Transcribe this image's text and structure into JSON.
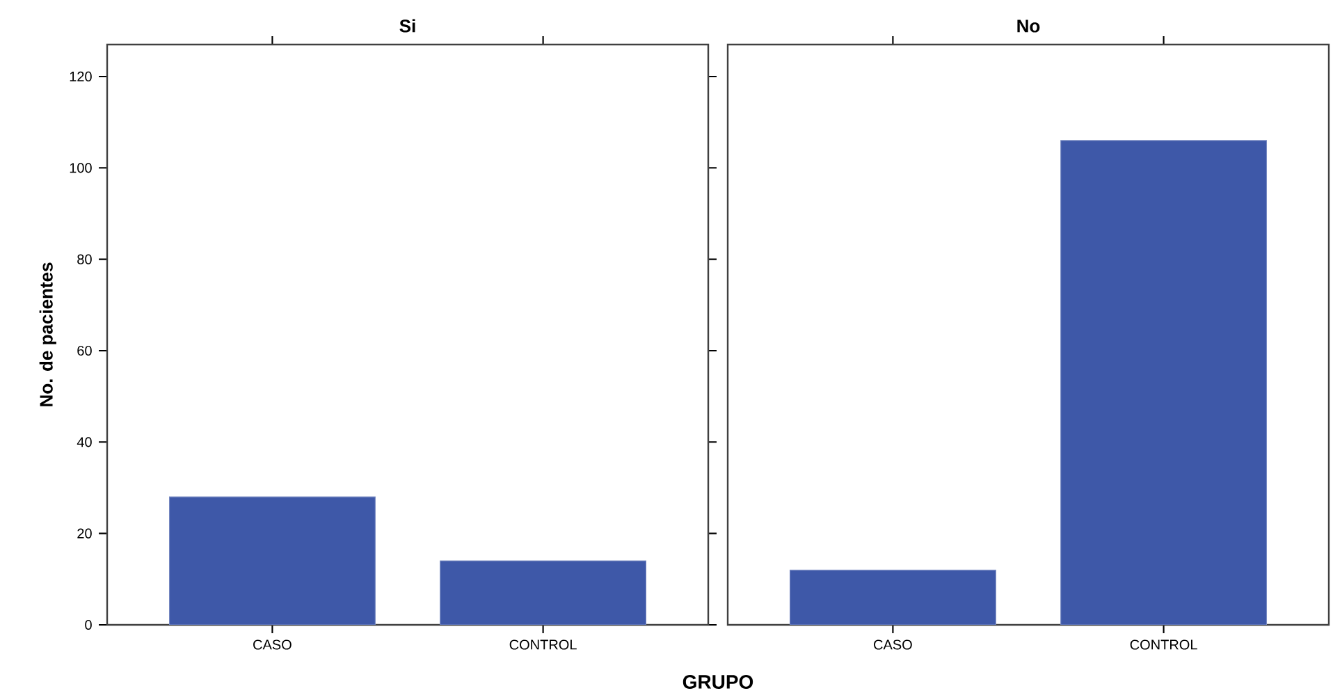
{
  "chart_data": [
    {
      "type": "bar",
      "title": "Si",
      "ylabel": "No. de pacientes",
      "xlabel": "GRUPO",
      "categories": [
        "CASO",
        "CONTROL"
      ],
      "values": [
        28,
        14
      ],
      "color": "#3e58a8",
      "ylim": [
        0,
        127
      ],
      "yticks": [
        0,
        20,
        40,
        60,
        80,
        100,
        120
      ]
    },
    {
      "type": "bar",
      "title": "No",
      "categories": [
        "CASO",
        "CONTROL"
      ],
      "values": [
        12,
        106
      ],
      "color": "#3e58a8",
      "ylim": [
        0,
        127
      ],
      "tick_labels": "x"
    }
  ]
}
